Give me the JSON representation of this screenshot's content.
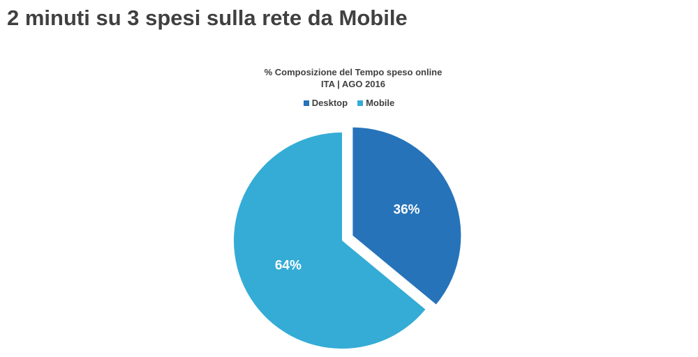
{
  "slide": {
    "title": "2 minuti su 3 spesi sulla rete da Mobile"
  },
  "chart_data": {
    "type": "pie",
    "title": "% Composizione del Tempo speso online",
    "subtitle": "ITA | AGO 2016",
    "legend_position": "top",
    "categories": [
      "Desktop",
      "Mobile"
    ],
    "values": [
      36,
      64
    ],
    "labels": [
      "36%",
      "64%"
    ],
    "colors": [
      "#2673BA",
      "#34ACD6"
    ],
    "exploded": "Desktop"
  }
}
